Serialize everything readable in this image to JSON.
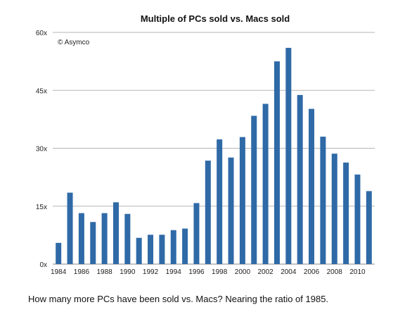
{
  "chart_data": {
    "type": "bar",
    "title": "Multiple of PCs sold vs. Macs sold",
    "annotation": "© Asymco",
    "xlabel": "",
    "ylabel": "",
    "categories": [
      "1984",
      "1985",
      "1986",
      "1987",
      "1988",
      "1989",
      "1990",
      "1991",
      "1992",
      "1993",
      "1994",
      "1995",
      "1996",
      "1997",
      "1998",
      "1999",
      "2000",
      "2001",
      "2002",
      "2003",
      "2004",
      "2005",
      "2006",
      "2007",
      "2008",
      "2009",
      "2010",
      "2011"
    ],
    "x_tick_labels": [
      "1984",
      "1986",
      "1988",
      "1990",
      "1992",
      "1994",
      "1996",
      "1998",
      "2000",
      "2002",
      "2004",
      "2006",
      "2008",
      "2010"
    ],
    "values": [
      5.5,
      18.5,
      13.2,
      10.9,
      13.2,
      16.0,
      13.0,
      6.8,
      7.6,
      7.6,
      8.8,
      9.2,
      15.8,
      26.8,
      32.3,
      27.6,
      32.9,
      38.4,
      41.5,
      52.5,
      56.0,
      43.8,
      40.2,
      33.0,
      28.6,
      26.3,
      23.2,
      18.9
    ],
    "ylim": [
      0,
      60
    ],
    "y_ticks": [
      0,
      15,
      30,
      45,
      60
    ],
    "y_tick_labels": [
      "0x",
      "15x",
      "30x",
      "45x",
      "60x"
    ],
    "grid": true,
    "bar_color": "#2f6aa7",
    "grid_color": "#b5b5b5"
  },
  "caption": "How many more PCs have been sold vs. Macs? Nearing the ratio of 1985."
}
